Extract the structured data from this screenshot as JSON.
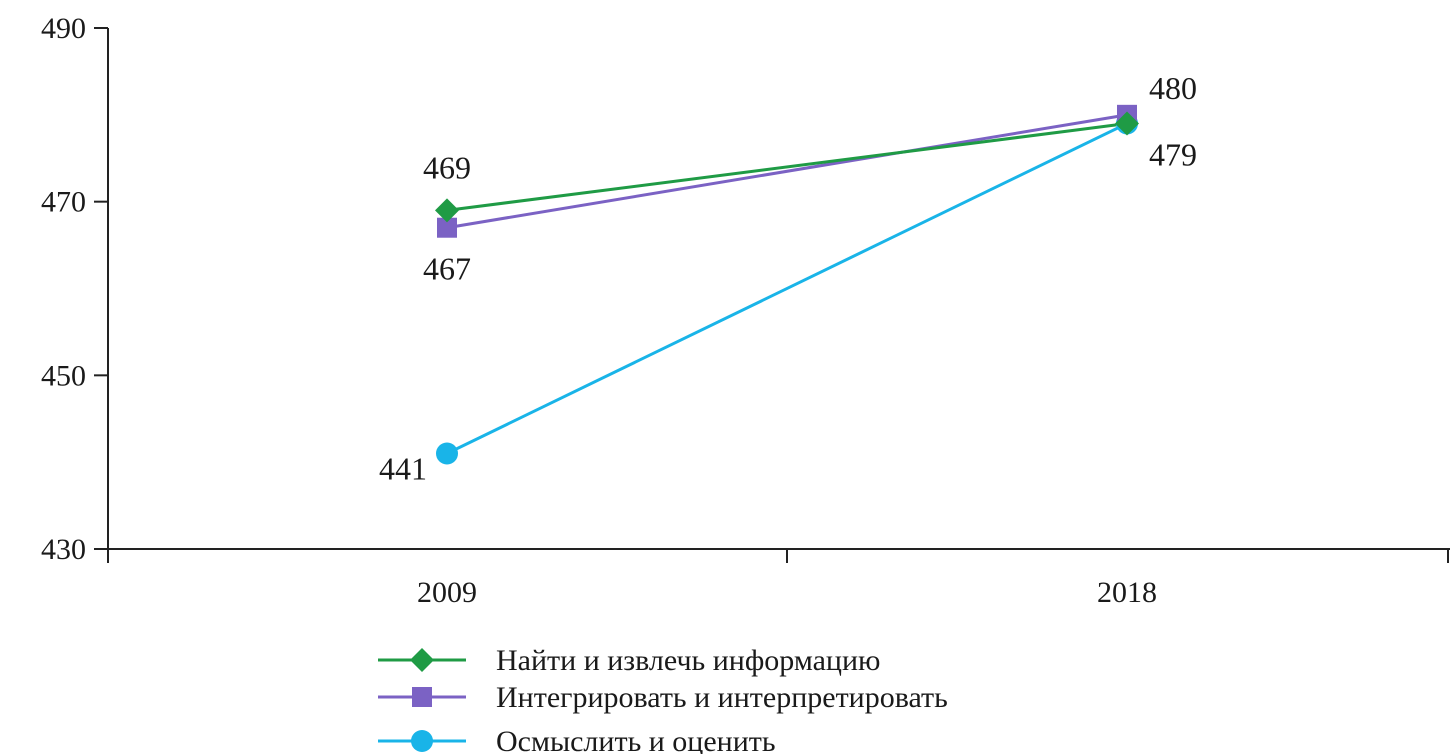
{
  "chart_data": {
    "type": "line",
    "categories": [
      "2009",
      "2018"
    ],
    "ylim": [
      430,
      490
    ],
    "yticks": [
      "430",
      "450",
      "470",
      "490"
    ],
    "grid": false,
    "legend_position": "bottom-center",
    "series": [
      {
        "name": "Найти и извлечь информацию",
        "values": [
          469,
          479
        ],
        "labels": [
          "469",
          "479"
        ],
        "color": "#1f9b45",
        "marker": "diamond"
      },
      {
        "name": "Интегрировать и интерпретировать",
        "values": [
          467,
          480
        ],
        "labels": [
          "467",
          "480"
        ],
        "color": "#7b62c4",
        "marker": "square"
      },
      {
        "name": "Осмыслить и оценить",
        "values": [
          441,
          479
        ],
        "labels": [
          "441",
          ""
        ],
        "color": "#19b4e8",
        "marker": "circle"
      }
    ]
  }
}
